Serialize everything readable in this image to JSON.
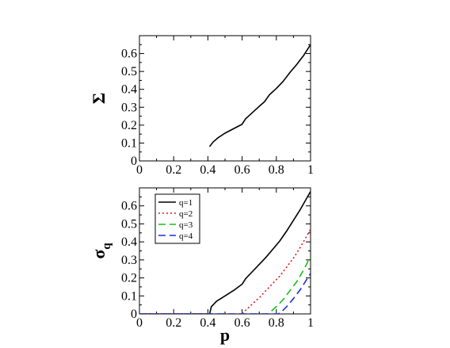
{
  "chart_data": [
    {
      "type": "line",
      "title": "",
      "xlabel": "",
      "ylabel": "Σ",
      "xlim": [
        0,
        1
      ],
      "ylim": [
        0,
        0.7
      ],
      "xticks": [
        "0",
        "0.2",
        "0.4",
        "0.6",
        "0.8",
        "1"
      ],
      "yticks": [
        "0",
        "0.1",
        "0.2",
        "0.3",
        "0.4",
        "0.5",
        "0.6"
      ],
      "grid": false,
      "series": [
        {
          "color": "#000000",
          "dash": "solid",
          "x": [
            0.41,
            0.43,
            0.46,
            0.5,
            0.54,
            0.58,
            0.6,
            0.62,
            0.66,
            0.7,
            0.73,
            0.76,
            0.8,
            0.84,
            0.88,
            0.92,
            0.96,
            1.0
          ],
          "y": [
            0.08,
            0.105,
            0.13,
            0.155,
            0.175,
            0.195,
            0.205,
            0.235,
            0.27,
            0.305,
            0.33,
            0.37,
            0.405,
            0.445,
            0.495,
            0.54,
            0.59,
            0.65
          ]
        }
      ]
    },
    {
      "type": "line",
      "title": "",
      "xlabel": "p",
      "ylabel": "σ",
      "ylabel_sub": "q",
      "xlim": [
        0,
        1
      ],
      "ylim": [
        0,
        0.7
      ],
      "xticks": [
        "0",
        "0.2",
        "0.4",
        "0.6",
        "0.8",
        "1"
      ],
      "yticks": [
        "0",
        "0.1",
        "0.2",
        "0.3",
        "0.4",
        "0.5",
        "0.6"
      ],
      "grid": false,
      "legend_position": "top-left",
      "series": [
        {
          "name": "q=1",
          "color": "#000000",
          "dash": "solid",
          "x": [
            0.0,
            0.41,
            0.42,
            0.45,
            0.5,
            0.55,
            0.6,
            0.62,
            0.66,
            0.7,
            0.74,
            0.78,
            0.82,
            0.86,
            0.9,
            0.94,
            0.97,
            1.0
          ],
          "y": [
            0.0,
            0.0,
            0.04,
            0.07,
            0.1,
            0.13,
            0.165,
            0.195,
            0.235,
            0.275,
            0.315,
            0.36,
            0.405,
            0.46,
            0.52,
            0.58,
            0.63,
            0.68
          ]
        },
        {
          "name": "q=2",
          "color": "#e8161c",
          "dash": "dotted",
          "x": [
            0.0,
            0.6,
            0.62,
            0.66,
            0.7,
            0.74,
            0.78,
            0.82,
            0.86,
            0.9,
            0.94,
            0.97,
            1.0
          ],
          "y": [
            0.0,
            0.0,
            0.02,
            0.055,
            0.09,
            0.13,
            0.17,
            0.21,
            0.26,
            0.31,
            0.37,
            0.42,
            0.47
          ]
        },
        {
          "name": "q=3",
          "color": "#16c01b",
          "dash": "dashed",
          "x": [
            0.0,
            0.75,
            0.77,
            0.8,
            0.84,
            0.88,
            0.92,
            0.96,
            1.0
          ],
          "y": [
            0.0,
            0.0,
            0.015,
            0.04,
            0.08,
            0.13,
            0.18,
            0.245,
            0.32
          ]
        },
        {
          "name": "q=4",
          "color": "#1a2fcf",
          "dash": "dashed",
          "x": [
            0.0,
            0.81,
            0.83,
            0.86,
            0.9,
            0.94,
            0.97,
            1.0
          ],
          "y": [
            0.0,
            0.0,
            0.012,
            0.04,
            0.085,
            0.135,
            0.18,
            0.225
          ]
        }
      ]
    }
  ]
}
